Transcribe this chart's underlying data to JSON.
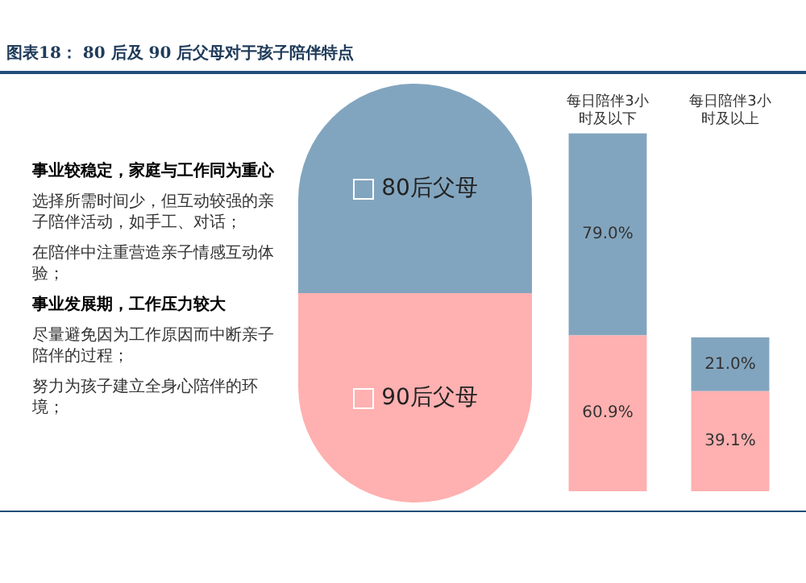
{
  "chart_data": {
    "type": "bar",
    "title": "图表18： 80 后及 90 后父母对于孩子陪伴特点",
    "categories": [
      "每日陪伴3小时及以下",
      "每日陪伴3小时及以上"
    ],
    "stacked": true,
    "tick_labels": "x",
    "grid": false,
    "legend": "left",
    "series": [
      {
        "name": "90后父母",
        "color": "#ffb0b0",
        "values": [
          60.9,
          39.1
        ],
        "value_labels": [
          "60.9%",
          "39.1%"
        ]
      },
      {
        "name": "80后父母",
        "color": "#82a5bf",
        "values": [
          79.0,
          21.0
        ],
        "value_labels": [
          "79.0%",
          "21.0%"
        ]
      }
    ],
    "annotations": [
      "事业较稳定，家庭与工作同为重心",
      "选择所需时间少，但互动较强的亲子陪伴活动，如手工、对话；",
      "在陪伴中注重营造亲子情感互动体验；",
      "事业发展期，工作压力较大",
      "尽量避免因为工作原因而中断亲子陪伴的过程；",
      "努力为孩子建立全身心陪伴的环境；"
    ]
  }
}
